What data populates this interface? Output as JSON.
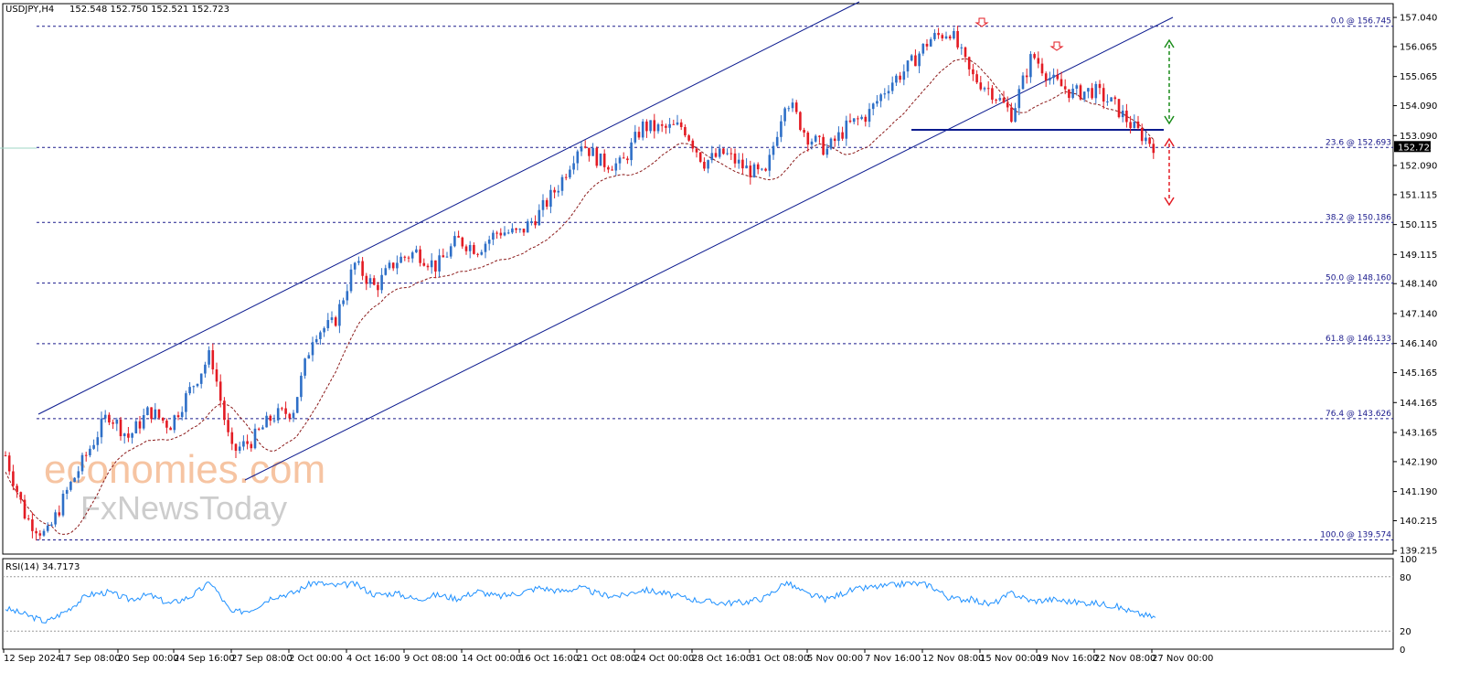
{
  "header": {
    "symbol": "USDJPY,H4",
    "ohlc": "152.548 152.750 152.521 152.723"
  },
  "rsi": {
    "label": "RSI(14) 34.7173",
    "levels": [
      "100",
      "80",
      "20",
      "0"
    ]
  },
  "watermark": {
    "line1": "economies.com",
    "line2": "FxNewsToday"
  },
  "colors": {
    "bull": "#2e6fc7",
    "bear": "#e31b23",
    "channel": "#0b1a8f",
    "fib": "#1a1a8c",
    "rsi": "#1e90ff",
    "ma": "#8b1a1a",
    "green_arrow": "#1a8c1a",
    "red_arrow": "#e31b23"
  },
  "chart_data": {
    "type": "candlestick",
    "symbol": "USDJPY",
    "timeframe": "H4",
    "current_price": "152.723",
    "price_axis_labels": [
      "157.040",
      "156.065",
      "155.065",
      "154.090",
      "153.090",
      "152.090",
      "151.115",
      "150.115",
      "149.115",
      "148.140",
      "147.140",
      "146.140",
      "145.165",
      "144.165",
      "143.165",
      "142.190",
      "141.190",
      "140.215",
      "139.215"
    ],
    "ylim": [
      139.1,
      157.5
    ],
    "date_labels": [
      "12 Sep 2024",
      "17 Sep 08:00",
      "20 Sep 00:00",
      "24 Sep 16:00",
      "27 Sep 08:00",
      "2 Oct 00:00",
      "4 Oct 16:00",
      "9 Oct 08:00",
      "14 Oct 00:00",
      "16 Oct 16:00",
      "21 Oct 08:00",
      "24 Oct 00:00",
      "28 Oct 16:00",
      "31 Oct 08:00",
      "5 Nov 00:00",
      "7 Nov 16:00",
      "12 Nov 08:00",
      "15 Nov 00:00",
      "19 Nov 16:00",
      "22 Nov 08:00",
      "27 Nov 00:00"
    ],
    "fib_levels": [
      {
        "label": "0.0 @ 156.745",
        "value": 156.745
      },
      {
        "label": "23.6 @ 152.693",
        "value": 152.693
      },
      {
        "label": "38.2 @ 150.186",
        "value": 150.186
      },
      {
        "label": "50.0 @ 148.160",
        "value": 148.16
      },
      {
        "label": "61.8 @ 146.133",
        "value": 146.133
      },
      {
        "label": "76.4 @ 143.626",
        "value": 143.626
      },
      {
        "label": "100.0 @ 139.574",
        "value": 139.574
      }
    ],
    "price_path": [
      {
        "date": "12 Sep 2024",
        "price": 142.4
      },
      {
        "date": "13 Sep",
        "price": 140.3
      },
      {
        "date": "16 Sep",
        "price": 139.7
      },
      {
        "date": "17 Sep 08:00",
        "price": 141.2
      },
      {
        "date": "18 Sep",
        "price": 142.5
      },
      {
        "date": "19 Sep",
        "price": 143.8
      },
      {
        "date": "20 Sep 00:00",
        "price": 143.0
      },
      {
        "date": "23 Sep",
        "price": 143.9
      },
      {
        "date": "24 Sep 16:00",
        "price": 143.4
      },
      {
        "date": "25 Sep",
        "price": 144.6
      },
      {
        "date": "26 Sep",
        "price": 145.8
      },
      {
        "date": "27 Sep 08:00",
        "price": 142.5
      },
      {
        "date": "30 Sep",
        "price": 142.9
      },
      {
        "date": "1 Oct",
        "price": 143.7
      },
      {
        "date": "2 Oct 00:00",
        "price": 143.9
      },
      {
        "date": "3 Oct",
        "price": 146.5
      },
      {
        "date": "4 Oct",
        "price": 146.8
      },
      {
        "date": "4 Oct 16:00",
        "price": 148.8
      },
      {
        "date": "8 Oct",
        "price": 148.0
      },
      {
        "date": "9 Oct 08:00",
        "price": 148.9
      },
      {
        "date": "10 Oct",
        "price": 149.2
      },
      {
        "date": "11 Oct",
        "price": 148.7
      },
      {
        "date": "14 Oct 00:00",
        "price": 149.6
      },
      {
        "date": "15 Oct",
        "price": 149.3
      },
      {
        "date": "16 Oct 16:00",
        "price": 149.9
      },
      {
        "date": "18 Oct",
        "price": 149.8
      },
      {
        "date": "21 Oct 08:00",
        "price": 150.5
      },
      {
        "date": "22 Oct",
        "price": 151.5
      },
      {
        "date": "23 Oct",
        "price": 152.9
      },
      {
        "date": "24 Oct 00:00",
        "price": 152.2
      },
      {
        "date": "25 Oct",
        "price": 152.1
      },
      {
        "date": "28 Oct",
        "price": 153.4
      },
      {
        "date": "28 Oct 16:00",
        "price": 153.3
      },
      {
        "date": "29 Oct",
        "price": 153.4
      },
      {
        "date": "31 Oct 08:00",
        "price": 152.2
      },
      {
        "date": "1 Nov",
        "price": 152.5
      },
      {
        "date": "4 Nov",
        "price": 152.0
      },
      {
        "date": "5 Nov 00:00",
        "price": 151.7
      },
      {
        "date": "6 Nov",
        "price": 154.4
      },
      {
        "date": "7 Nov",
        "price": 153.1
      },
      {
        "date": "7 Nov 16:00",
        "price": 152.6
      },
      {
        "date": "8 Nov",
        "price": 153.4
      },
      {
        "date": "11 Nov",
        "price": 153.8
      },
      {
        "date": "12 Nov 08:00",
        "price": 154.8
      },
      {
        "date": "13 Nov",
        "price": 155.4
      },
      {
        "date": "14 Nov",
        "price": 156.3
      },
      {
        "date": "15 Nov 00:00",
        "price": 156.6
      },
      {
        "date": "15 Nov 12:00",
        "price": 155.1
      },
      {
        "date": "18 Nov",
        "price": 154.6
      },
      {
        "date": "19 Nov",
        "price": 153.8
      },
      {
        "date": "19 Nov 16:00",
        "price": 155.8
      },
      {
        "date": "20 Nov",
        "price": 154.9
      },
      {
        "date": "21 Nov",
        "price": 154.5
      },
      {
        "date": "22 Nov 08:00",
        "price": 154.6
      },
      {
        "date": "25 Nov",
        "price": 154.1
      },
      {
        "date": "26 Nov",
        "price": 153.3
      },
      {
        "date": "27 Nov 00:00",
        "price": 152.723
      }
    ],
    "rsi_path": [
      45,
      38,
      30,
      43,
      60,
      63,
      55,
      60,
      50,
      58,
      74,
      40,
      44,
      58,
      62,
      74,
      70,
      72,
      60,
      62,
      55,
      60,
      56,
      64,
      58,
      62,
      68,
      64,
      68,
      60,
      59,
      66,
      62,
      57,
      53,
      51,
      52,
      57,
      74,
      61,
      55,
      64,
      68,
      70,
      73,
      71,
      56,
      55,
      49,
      62,
      53,
      55,
      52,
      51,
      48,
      40,
      35
    ],
    "rsi_ylim": [
      0,
      100
    ]
  }
}
